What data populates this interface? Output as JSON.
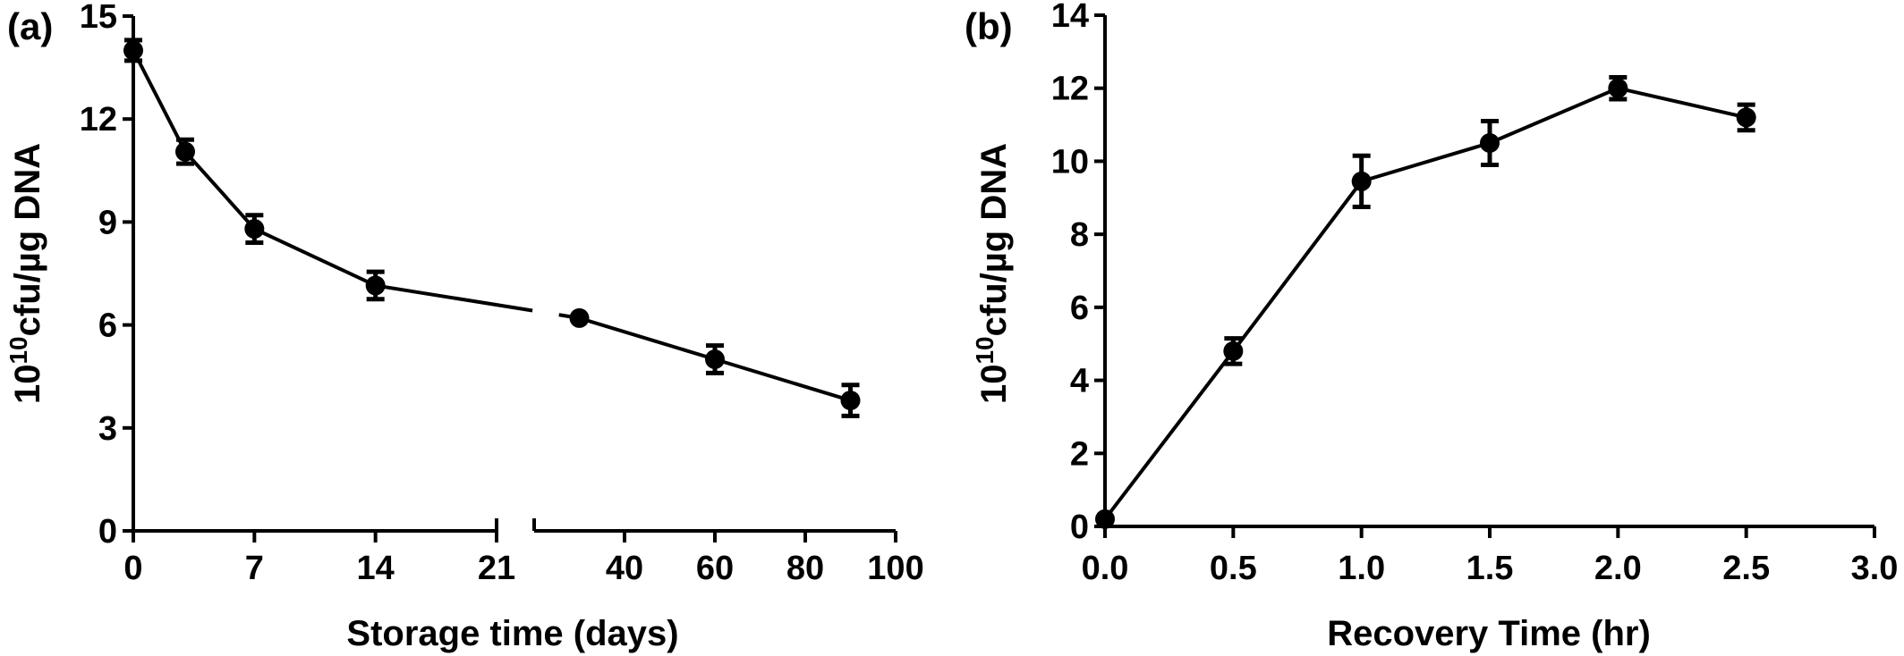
{
  "chart_data": [
    {
      "type": "line",
      "panel_label": "(a)",
      "xlabel": "Storage time (days)",
      "ylabel_base": "10",
      "ylabel_sup": "10",
      "ylabel_rest": "cfu/µg DNA",
      "ylim": [
        0,
        15
      ],
      "yticks": [
        "0",
        "3",
        "6",
        "9",
        "12",
        "15"
      ],
      "x_axis": "broken",
      "x_segments": [
        {
          "range": [
            0,
            21
          ],
          "ticks": [
            "0",
            "7",
            "14",
            "21"
          ]
        },
        {
          "range": [
            20,
            100
          ],
          "ticks": [
            "40",
            "60",
            "80",
            "100"
          ]
        }
      ],
      "series": [
        {
          "x": [
            0,
            3,
            7,
            14,
            30,
            60,
            90
          ],
          "y": [
            14.0,
            11.05,
            8.8,
            7.15,
            6.2,
            5.0,
            3.8
          ],
          "err": [
            0.3,
            0.35,
            0.4,
            0.4,
            0.1,
            0.4,
            0.45
          ]
        }
      ],
      "grid": false
    },
    {
      "type": "line",
      "panel_label": "(b)",
      "xlabel": "Recovery Time  (hr)",
      "ylabel_base": "10",
      "ylabel_sup": "10",
      "ylabel_rest": "cfu/µg DNA",
      "ylim": [
        0,
        14
      ],
      "xlim": [
        0,
        3
      ],
      "yticks": [
        "0",
        "2",
        "4",
        "6",
        "8",
        "10",
        "12",
        "14"
      ],
      "xticks": [
        "0.0",
        "0.5",
        "1.0",
        "1.5",
        "2.0",
        "2.5",
        "3.0"
      ],
      "series": [
        {
          "x": [
            0.0,
            0.5,
            1.0,
            1.5,
            2.0,
            2.5
          ],
          "y": [
            0.2,
            4.8,
            9.45,
            10.5,
            12.0,
            11.2
          ],
          "err": [
            0.1,
            0.35,
            0.7,
            0.6,
            0.3,
            0.35
          ]
        }
      ],
      "grid": false
    }
  ]
}
